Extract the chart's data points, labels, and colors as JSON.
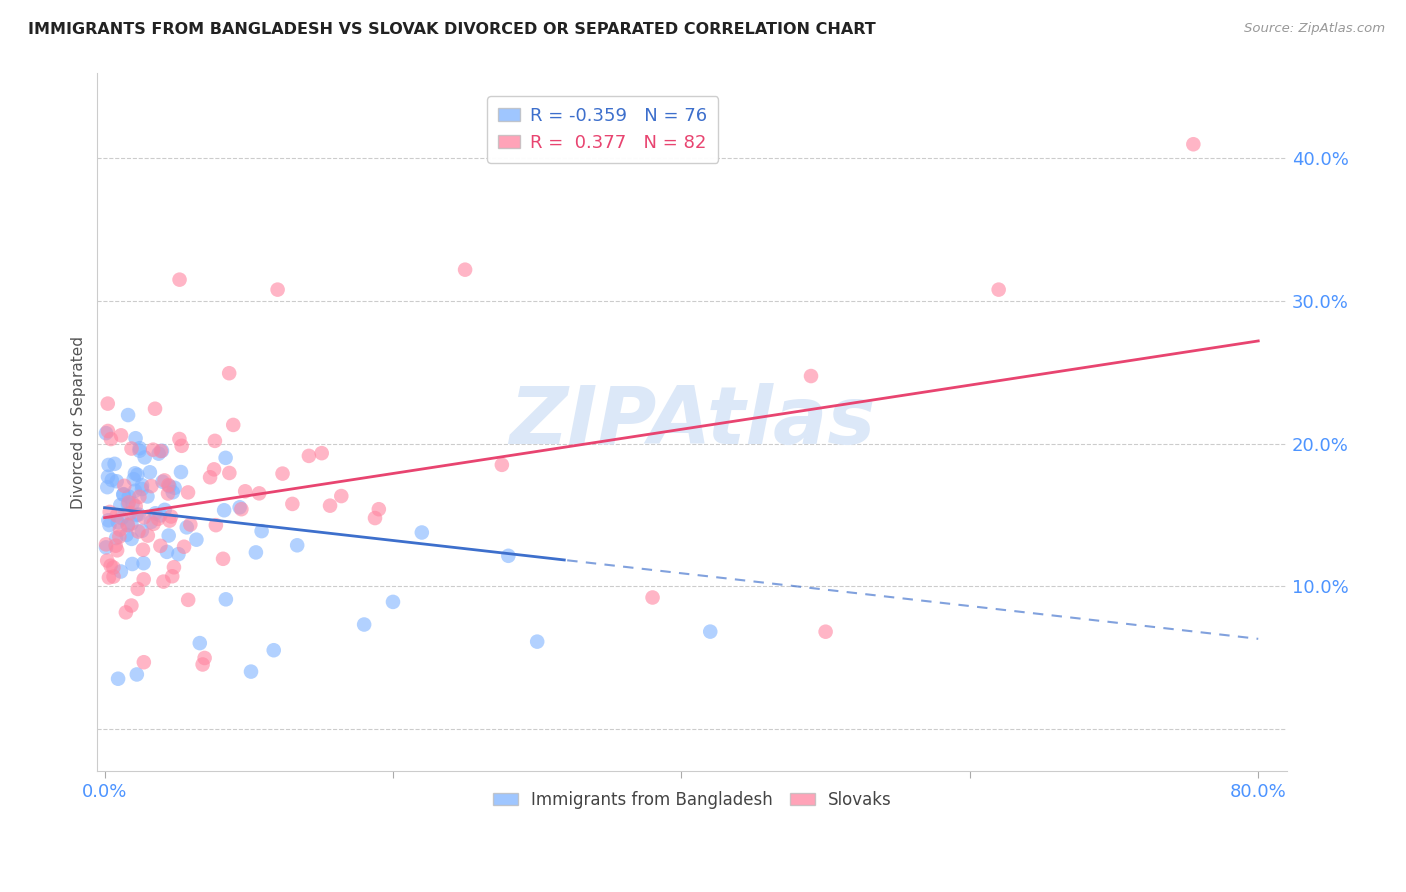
{
  "title": "IMMIGRANTS FROM BANGLADESH VS SLOVAK DIVORCED OR SEPARATED CORRELATION CHART",
  "source": "Source: ZipAtlas.com",
  "tick_color": "#4d94ff",
  "ylabel": "Divorced or Separated",
  "blue_R": -0.359,
  "blue_N": 76,
  "pink_R": 0.377,
  "pink_N": 82,
  "blue_color": "#7fb3ff",
  "pink_color": "#ff85a0",
  "blue_line_color": "#3d6fcc",
  "pink_line_color": "#e84470",
  "watermark": "ZIPAtlas",
  "watermark_color": "#dce8f8",
  "legend_label_blue": "Immigrants from Bangladesh",
  "legend_label_pink": "Slovaks",
  "background_color": "#ffffff",
  "grid_color": "#cccccc"
}
